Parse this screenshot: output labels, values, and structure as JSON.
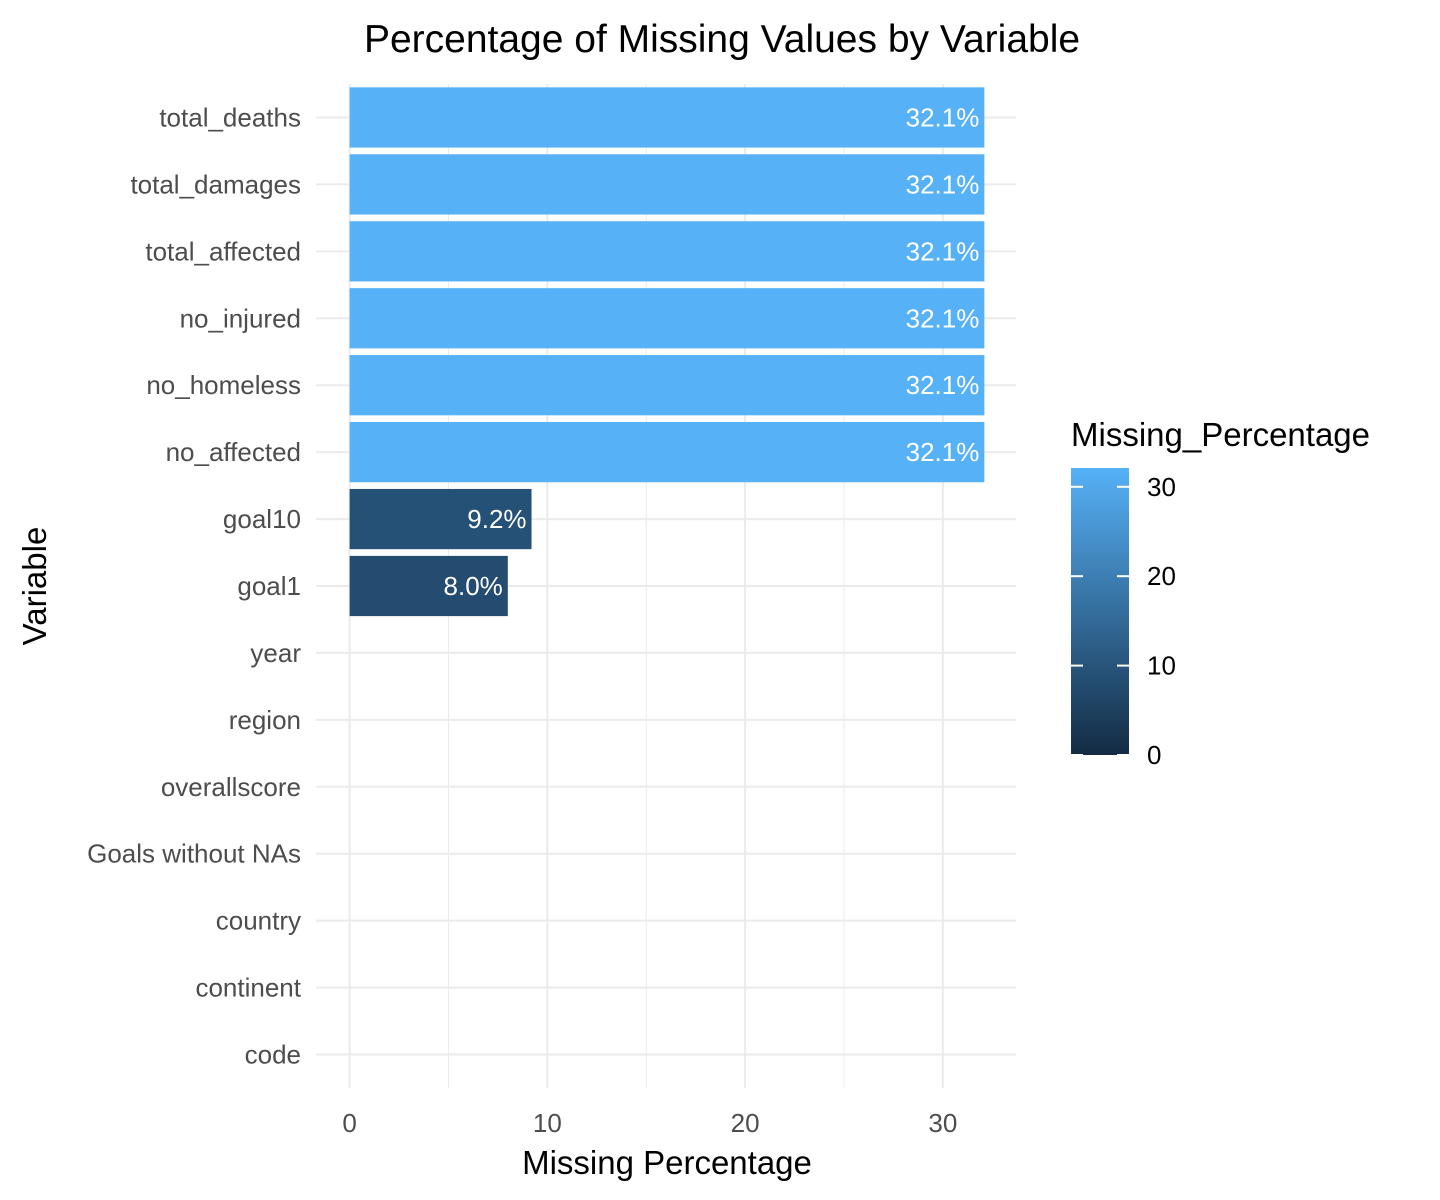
{
  "chart_data": {
    "type": "bar",
    "orientation": "horizontal",
    "title": "Percentage of Missing Values by Variable",
    "xlabel": "Missing Percentage",
    "ylabel": "Variable",
    "categories": [
      "total_deaths",
      "total_damages",
      "total_affected",
      "no_injured",
      "no_homeless",
      "no_affected",
      "goal10",
      "goal1",
      "year",
      "region",
      "overallscore",
      "Goals without NAs",
      "country",
      "continent",
      "code"
    ],
    "values": [
      32.1,
      32.1,
      32.1,
      32.1,
      32.1,
      32.1,
      9.2,
      8.0,
      0,
      0,
      0,
      0,
      0,
      0,
      0
    ],
    "data_labels": [
      "32.1%",
      "32.1%",
      "32.1%",
      "32.1%",
      "32.1%",
      "32.1%",
      "9.2%",
      "8.0%",
      "",
      "",
      "",
      "",
      "",
      "",
      ""
    ],
    "xlim": [
      -1.7,
      33.7
    ],
    "x_ticks": [
      0,
      10,
      20,
      30
    ],
    "grid": true,
    "legend": {
      "title": "Missing_Percentage",
      "type": "colorbar",
      "placement": "right",
      "ticks": [
        0,
        10,
        20,
        30
      ],
      "range": [
        0,
        32.1
      ],
      "color_low": "#132b43",
      "color_high": "#56b1f7"
    }
  }
}
